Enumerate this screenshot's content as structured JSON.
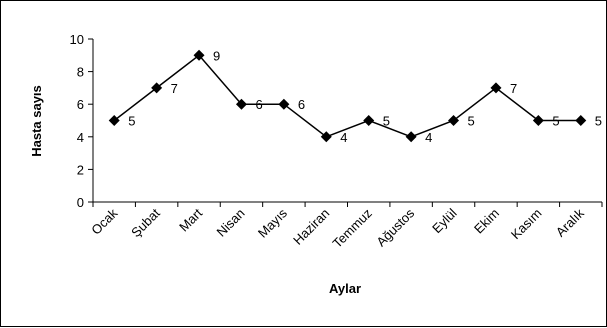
{
  "chart_data": {
    "type": "line",
    "xlabel": "Aylar",
    "ylabel": "Hasta sayıs",
    "categories": [
      "Ocak",
      "Şubat",
      "Mart",
      "Nisan",
      "Mayıs",
      "Haziran",
      "Temmuz",
      "Ağustos",
      "Eylül",
      "Ekim",
      "Kasım",
      "Aralık"
    ],
    "series": [
      {
        "values": [
          5,
          7,
          9,
          6,
          6,
          4,
          5,
          4,
          5,
          7,
          5,
          5
        ],
        "color": "#000000",
        "marker": "diamond"
      }
    ],
    "ylim": [
      0,
      10
    ],
    "yticks": [
      0,
      2,
      4,
      6,
      8,
      10
    ],
    "grid": false,
    "legend": "none",
    "data_labels": true
  }
}
